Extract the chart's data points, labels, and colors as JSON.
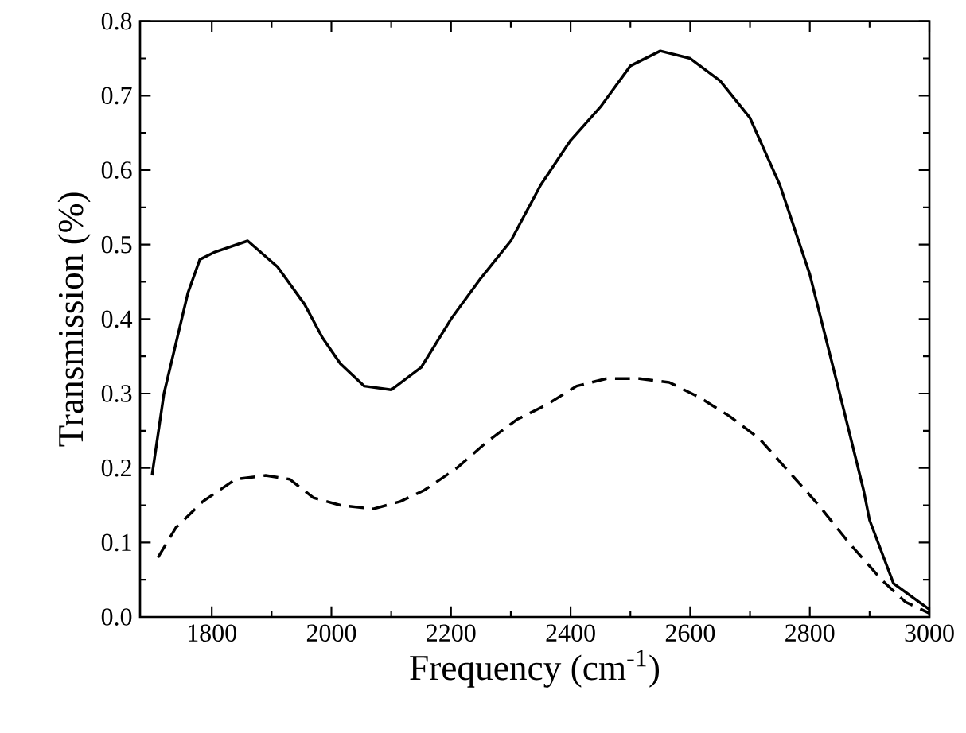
{
  "chart_data": {
    "type": "line",
    "xlabel": "Frequency (cm$^{-1}$)",
    "ylabel": "Transmission (%)",
    "xlim": [
      1680,
      3000
    ],
    "ylim": [
      0,
      0.8
    ],
    "xticks": [
      1800,
      2000,
      2200,
      2400,
      2600,
      2800,
      3000
    ],
    "yticks": [
      {
        "value": 0,
        "label": "0.0"
      },
      0.1,
      0.2,
      0.3,
      0.4,
      0.5,
      0.6,
      0.7,
      0.8
    ],
    "marker": "none",
    "series": [
      {
        "color": "#000000",
        "line_style": "solid",
        "x": [
          1700,
          1720,
          1760,
          1780,
          1805,
          1860,
          1910,
          1955,
          1985,
          2015,
          2055,
          2100,
          2150,
          2200,
          2250,
          2300,
          2350,
          2400,
          2450,
          2500,
          2550,
          2600,
          2650,
          2700,
          2750,
          2800,
          2850,
          2890,
          2900,
          2940,
          3000
        ],
        "values": [
          0.19,
          0.3,
          0.435,
          0.48,
          0.49,
          0.505,
          0.47,
          0.42,
          0.375,
          0.34,
          0.31,
          0.305,
          0.335,
          0.4,
          0.455,
          0.505,
          0.58,
          0.64,
          0.685,
          0.74,
          0.76,
          0.75,
          0.72,
          0.67,
          0.58,
          0.46,
          0.3,
          0.17,
          0.13,
          0.045,
          0.01
        ]
      },
      {
        "color": "#000000",
        "line_style": "dashed",
        "x": [
          1710,
          1740,
          1785,
          1840,
          1890,
          1930,
          1970,
          2015,
          2070,
          2115,
          2155,
          2210,
          2260,
          2310,
          2360,
          2410,
          2460,
          2515,
          2565,
          2615,
          2665,
          2715,
          2765,
          2815,
          2865,
          2920,
          2960,
          3000
        ],
        "values": [
          0.08,
          0.12,
          0.155,
          0.185,
          0.19,
          0.185,
          0.16,
          0.15,
          0.145,
          0.155,
          0.17,
          0.2,
          0.235,
          0.265,
          0.285,
          0.31,
          0.32,
          0.32,
          0.315,
          0.295,
          0.27,
          0.24,
          0.195,
          0.15,
          0.1,
          0.05,
          0.02,
          0.005
        ]
      }
    ]
  }
}
